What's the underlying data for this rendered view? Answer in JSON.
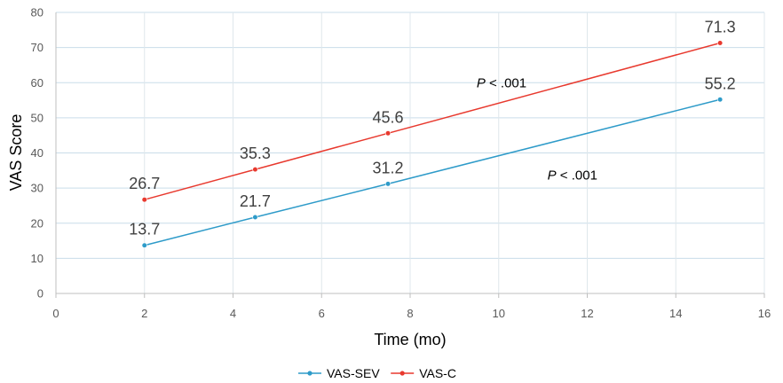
{
  "chart_data": {
    "type": "line",
    "title": "",
    "xlabel": "Time (mo)",
    "ylabel": "VAS Score",
    "xlim": [
      0,
      16
    ],
    "ylim": [
      0,
      80
    ],
    "xticks": [
      0,
      2,
      4,
      6,
      8,
      10,
      12,
      14,
      16
    ],
    "yticks": [
      0,
      10,
      20,
      30,
      40,
      50,
      60,
      70,
      80
    ],
    "grid": true,
    "legend_position": "bottom",
    "series": [
      {
        "name": "VAS-SEV",
        "color": "#2E9BC9",
        "points": [
          {
            "x": 2,
            "y": 13.7,
            "label": "13.7"
          },
          {
            "x": 4.5,
            "y": 21.7,
            "label": "21.7"
          },
          {
            "x": 7.5,
            "y": 31.2,
            "label": "31.2"
          },
          {
            "x": 15,
            "y": 55.2,
            "label": "55.2"
          }
        ]
      },
      {
        "name": "VAS-C",
        "color": "#E8392E",
        "points": [
          {
            "x": 2,
            "y": 26.7,
            "label": "26.7"
          },
          {
            "x": 4.5,
            "y": 35.3,
            "label": "35.3"
          },
          {
            "x": 7.5,
            "y": 45.6,
            "label": "45.6"
          },
          {
            "x": 15,
            "y": 71.3,
            "label": "71.3"
          }
        ]
      }
    ],
    "annotations": [
      {
        "italic": "P",
        "rest": " < .001",
        "x": 9.5,
        "y": 58.7
      },
      {
        "italic": "P",
        "rest": " < .001",
        "x": 11.1,
        "y": 32.4
      }
    ]
  }
}
